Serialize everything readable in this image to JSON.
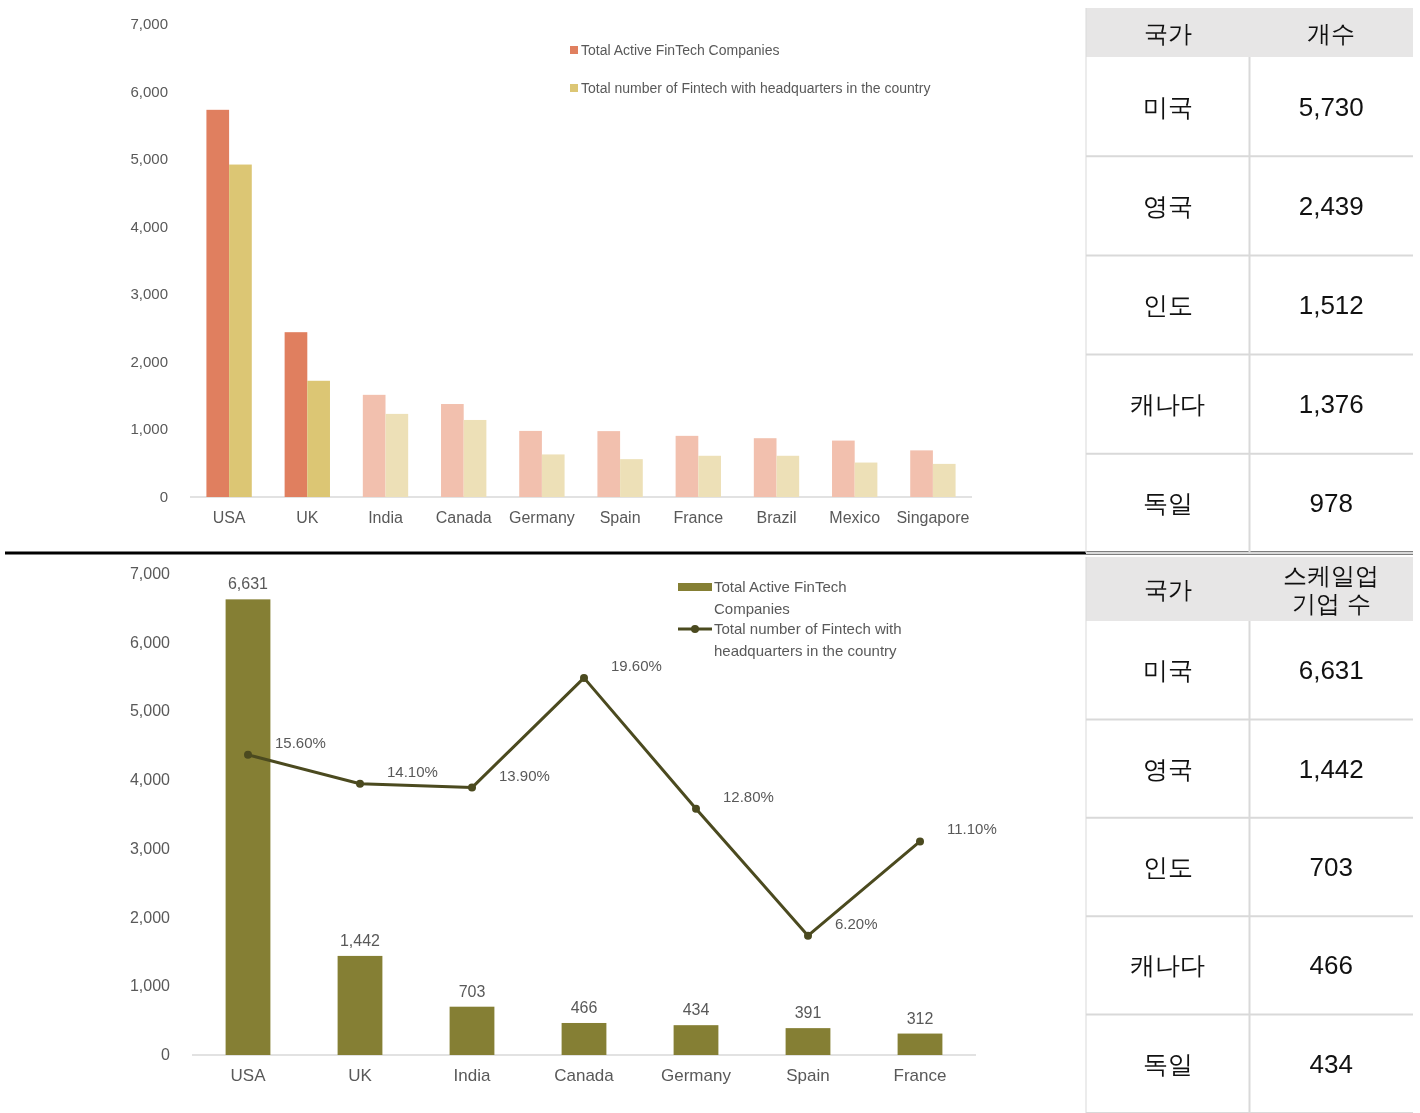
{
  "chart_data": [
    {
      "type": "bar",
      "categories": [
        "USA",
        "UK",
        "India",
        "Canada",
        "Germany",
        "Spain",
        "France",
        "Brazil",
        "Mexico",
        "Singapore"
      ],
      "series": [
        {
          "name": "Total Active FinTech Companies",
          "color": "#e07f5f",
          "colors": [
            "#e07f5f",
            "#e07f5f",
            "#f2c0ae",
            "#f2c0ae",
            "#f2c0ae",
            "#f2c0ae",
            "#f2c0ae",
            "#f2c0ae",
            "#f2c0ae",
            "#f2c0ae"
          ],
          "values": [
            5730,
            2439,
            1512,
            1376,
            978,
            975,
            905,
            870,
            835,
            690
          ]
        },
        {
          "name": "Total number of Fintech with headquarters in the country",
          "color": "#dcc674",
          "colors": [
            "#dcc674",
            "#dcc674",
            "#ede0b7",
            "#ede0b7",
            "#ede0b7",
            "#ede0b7",
            "#ede0b7",
            "#ede0b7",
            "#ede0b7",
            "#ede0b7"
          ],
          "values": [
            4920,
            1720,
            1230,
            1140,
            630,
            560,
            610,
            610,
            510,
            490
          ]
        }
      ],
      "ylim": [
        0,
        7000
      ],
      "yticks": [
        0,
        {
          "value": 1000,
          "label": "1,000"
        },
        {
          "value": 2000,
          "label": "2,000"
        },
        {
          "value": 3000,
          "label": "3,000"
        },
        {
          "value": 4000,
          "label": "4,000"
        },
        {
          "value": 5000,
          "label": "5,000"
        },
        {
          "value": 6000,
          "label": "6,000"
        },
        {
          "value": 7000,
          "label": "7,000"
        }
      ],
      "legend": "top right"
    },
    {
      "type": "other",
      "xlabel": "국가",
      "ylabel": "개수",
      "categories": [
        "미국",
        "영국",
        "인도",
        "캐나다",
        "독일"
      ],
      "value_labels": [
        "5,730",
        "2,439",
        "1,512",
        "1,376",
        "978"
      ]
    },
    {
      "type": "bar",
      "categories": [
        "USA",
        "UK",
        "India",
        "Canada",
        "Germany",
        "Spain",
        "France"
      ],
      "series": [
        {
          "name": "Total Active FinTech Companies",
          "color": "#857f34",
          "values": [
            6631,
            1442,
            703,
            466,
            434,
            391,
            312
          ],
          "value_labels": [
            "6,631",
            "1,442",
            "703",
            "466",
            "434",
            "391",
            "312"
          ]
        },
        {
          "name": "Total number of Fintech with headquarters in the country",
          "type": "line",
          "axis": "y2",
          "color": "#4b4a1f",
          "values": [
            15.6,
            14.1,
            13.9,
            19.6,
            12.8,
            6.2,
            11.1
          ],
          "value_labels": [
            "15.60%",
            "14.10%",
            "13.90%",
            "19.60%",
            "12.80%",
            "6.20%",
            "11.10%"
          ]
        }
      ],
      "ylim": [
        0,
        7000
      ],
      "yticks": [
        0,
        {
          "value": 1000,
          "label": "1,000"
        },
        {
          "value": 2000,
          "label": "2,000"
        },
        {
          "value": 3000,
          "label": "3,000"
        },
        {
          "value": 4000,
          "label": "4,000"
        },
        {
          "value": 5000,
          "label": "5,000"
        },
        {
          "value": 6000,
          "label": "6,000"
        },
        {
          "value": 7000,
          "label": "7,000"
        }
      ],
      "marker": "circle",
      "legend": "top right"
    },
    {
      "type": "other",
      "xlabel": "국가",
      "ylabel": "스케일업 기업 수",
      "categories": [
        "미국",
        "영국",
        "인도",
        "캐나다",
        "독일"
      ],
      "value_labels": [
        "6,631",
        "1,442",
        "703",
        "466",
        "434"
      ]
    }
  ]
}
